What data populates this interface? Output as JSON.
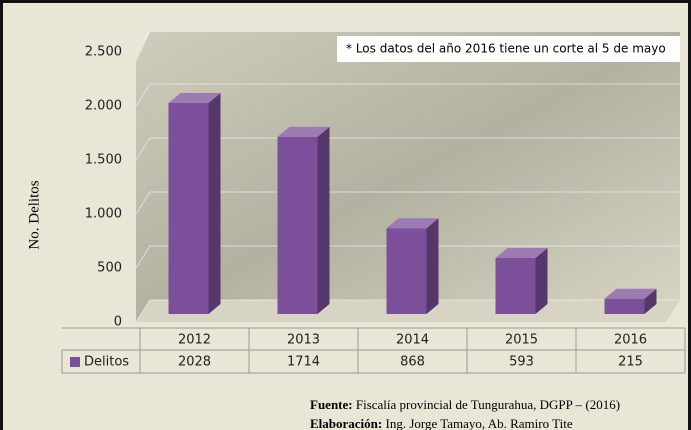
{
  "chart_data": {
    "type": "bar3d",
    "y_label": "No. Delitos",
    "annotation": "* Los datos del año 2016 tiene un corte al 5 de mayo",
    "categories": [
      "2012",
      "2013",
      "2014",
      "2015",
      "2016"
    ],
    "series": [
      {
        "name": "Delitos",
        "color": "#7b4f9a",
        "values": [
          2028,
          1714,
          868,
          593,
          215
        ]
      }
    ],
    "ylim": [
      0,
      2500
    ],
    "yticks": [
      0,
      500,
      {
        "value": 1000,
        "label": "1.000"
      },
      {
        "value": 1500,
        "label": "1.500"
      },
      {
        "value": 2000,
        "label": "2.000"
      },
      {
        "value": 2500,
        "label": "2.500"
      }
    ],
    "grid": true,
    "data_table": true
  },
  "footer": {
    "source_label": "Fuente:",
    "source_text": "Fiscalía provincial de Tungurahua, DGPP – (2016)",
    "credit_label": "Elaboración:",
    "credit_text": "Ing. Jorge Tamayo, Ab. Ramiro Tite"
  }
}
